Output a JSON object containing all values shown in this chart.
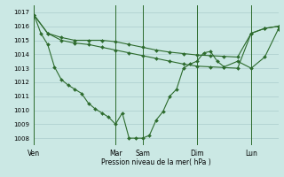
{
  "background_color": "#cbe8e4",
  "grid_color": "#aacccc",
  "line_color": "#2d6b2d",
  "xlabel": "Pression niveau de la mer( hPa )",
  "ylim": [
    1007.5,
    1017.5
  ],
  "yticks": [
    1008,
    1009,
    1010,
    1011,
    1012,
    1013,
    1014,
    1015,
    1016,
    1017
  ],
  "day_labels": [
    "Ven",
    "Mar",
    "Sam",
    "Dim",
    "Lun"
  ],
  "day_positions": [
    0,
    12,
    16,
    24,
    32
  ],
  "xlim": [
    0,
    36
  ],
  "line1_x": [
    0,
    2,
    4,
    6,
    8,
    10,
    12,
    14,
    16,
    18,
    20,
    22,
    24,
    26,
    28,
    30,
    32,
    34,
    36
  ],
  "line1_y": [
    1016.8,
    1015.5,
    1015.2,
    1015.0,
    1015.0,
    1015.0,
    1014.9,
    1014.7,
    1014.5,
    1014.3,
    1014.15,
    1014.05,
    1013.95,
    1013.9,
    1013.85,
    1013.8,
    1015.5,
    1015.85,
    1016.0
  ],
  "line2_x": [
    0,
    2,
    4,
    6,
    8,
    10,
    12,
    14,
    16,
    18,
    20,
    22,
    24,
    26,
    28,
    30,
    32,
    34,
    36
  ],
  "line2_y": [
    1016.8,
    1015.5,
    1015.0,
    1014.8,
    1014.7,
    1014.5,
    1014.3,
    1014.1,
    1013.9,
    1013.7,
    1013.5,
    1013.3,
    1013.15,
    1013.1,
    1013.05,
    1013.0,
    1015.5,
    1015.85,
    1016.0
  ],
  "line3_x": [
    0,
    1,
    2,
    3,
    4,
    5,
    6,
    7,
    8,
    9,
    10,
    11,
    12,
    13,
    14,
    15,
    16,
    17,
    18,
    19,
    20,
    21,
    22,
    23,
    24,
    25,
    26,
    27,
    28,
    30,
    32,
    34,
    36
  ],
  "line3_y": [
    1016.8,
    1015.5,
    1014.7,
    1013.1,
    1012.2,
    1011.8,
    1011.5,
    1011.2,
    1010.5,
    1010.1,
    1009.8,
    1009.5,
    1009.0,
    1009.8,
    1008.0,
    1008.0,
    1008.0,
    1008.2,
    1009.3,
    1009.9,
    1011.0,
    1011.5,
    1013.0,
    1013.3,
    1013.5,
    1014.1,
    1014.2,
    1013.5,
    1013.1,
    1013.5,
    1013.0,
    1013.8,
    1015.8
  ]
}
